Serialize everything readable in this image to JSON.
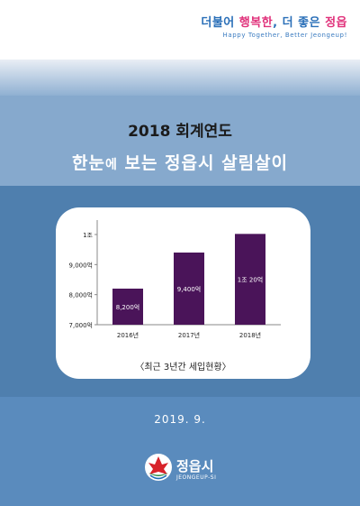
{
  "slogan": {
    "prefix": "더불어 ",
    "highlight": "행복한",
    "middle": ", 더 좋은 ",
    "city": "정읍",
    "english": "Happy Together, Better Jeongeup!"
  },
  "cover": {
    "fiscal_year": "2018 회계연도",
    "title_part1": "한눈",
    "title_small": "에",
    "title_part2": " 보는 정읍시 살림살이",
    "date": "2019. 9."
  },
  "logo": {
    "name": "정읍시",
    "english": "JEONGEUP-SI"
  },
  "colors": {
    "bar": "#4a1459",
    "background": "#5b87b5",
    "card": "#ffffff"
  },
  "chart_data": {
    "type": "bar",
    "categories": [
      "2016년",
      "2017년",
      "2018년"
    ],
    "values": [
      8200,
      9400,
      10020
    ],
    "data_labels": [
      "8,200억",
      "9,400억",
      "1조 20억"
    ],
    "y_ticks": [
      {
        "value": 7000,
        "label": "7,000억"
      },
      {
        "value": 8000,
        "label": "8,000억"
      },
      {
        "value": 9000,
        "label": "9,000억"
      },
      {
        "value": 10000,
        "label": "1조"
      }
    ],
    "ylim": [
      7000,
      10300
    ],
    "caption": "〈최근 3년간 세입현황〉"
  }
}
